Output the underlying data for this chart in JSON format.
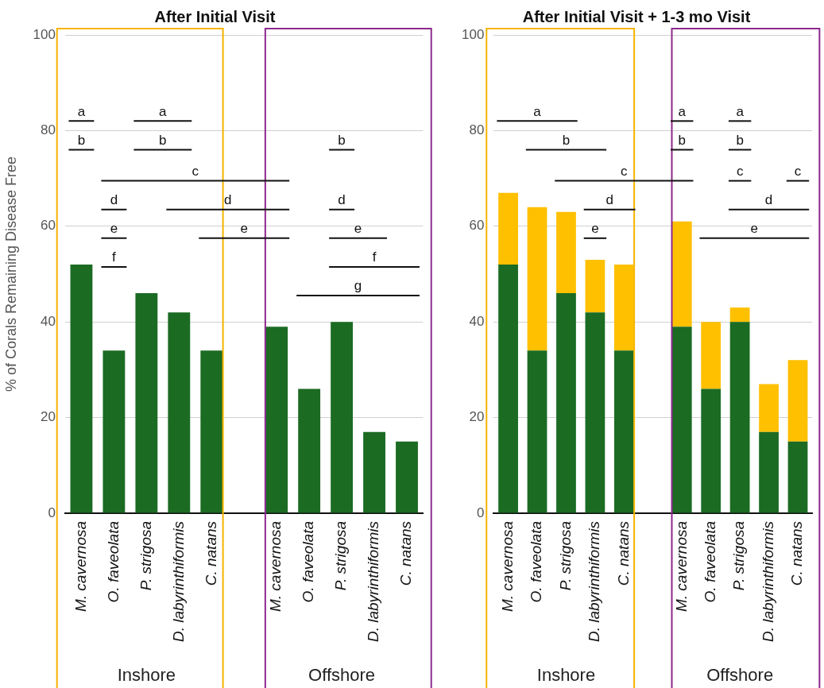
{
  "chart_data": [
    {
      "type": "bar",
      "title": "After Initial Visit",
      "ylabel": "% of Corals Remaining Disease Free",
      "categories": [
        "M. cavernosa",
        "O. faveolata",
        "P. strigosa",
        "D. labyrinthiformis",
        "C. natans",
        null,
        "M. cavernosa",
        "O. faveolata",
        "P. strigosa",
        "D. labyrinthiformis",
        "C. natans"
      ],
      "series": [
        {
          "color": "#1b6b23",
          "values": [
            52,
            34,
            46,
            42,
            34,
            null,
            39,
            26,
            40,
            17,
            15
          ]
        }
      ],
      "ylim": [
        0,
        100
      ],
      "yticks": [
        0,
        20,
        40,
        60,
        80,
        100
      ],
      "grid": "y",
      "annotations": [
        "a",
        "a",
        "b",
        "b",
        "b",
        "c",
        "d",
        "d",
        "d",
        "e",
        "e",
        "e",
        "f",
        "f",
        "g",
        "Inshore",
        "Offshore"
      ]
    },
    {
      "type": "bar",
      "title": "After Initial Visit + 1-3 mo Visit",
      "categories": [
        "M. cavernosa",
        "O. faveolata",
        "P. strigosa",
        "D. labyrinthiformis",
        "C. natans",
        null,
        "M. cavernosa",
        "O. faveolata",
        "P. strigosa",
        "D. labyrinthiformis",
        "C. natans"
      ],
      "stacked": true,
      "series": [
        {
          "color": "#1b6b23",
          "values": [
            52,
            34,
            46,
            42,
            34,
            null,
            39,
            26,
            40,
            17,
            15
          ]
        },
        {
          "color": "#ffc000",
          "values": [
            15,
            30,
            17,
            11,
            18,
            null,
            22,
            14,
            3,
            10,
            17
          ]
        }
      ],
      "ylim": [
        0,
        100
      ],
      "yticks": [
        0,
        20,
        40,
        60,
        80,
        100
      ],
      "grid": "y",
      "annotations": [
        "a",
        "a",
        "a",
        "b",
        "b",
        "b",
        "c",
        "c",
        "c",
        "d",
        "d",
        "e",
        "e",
        "Inshore",
        "Offshore"
      ]
    }
  ]
}
